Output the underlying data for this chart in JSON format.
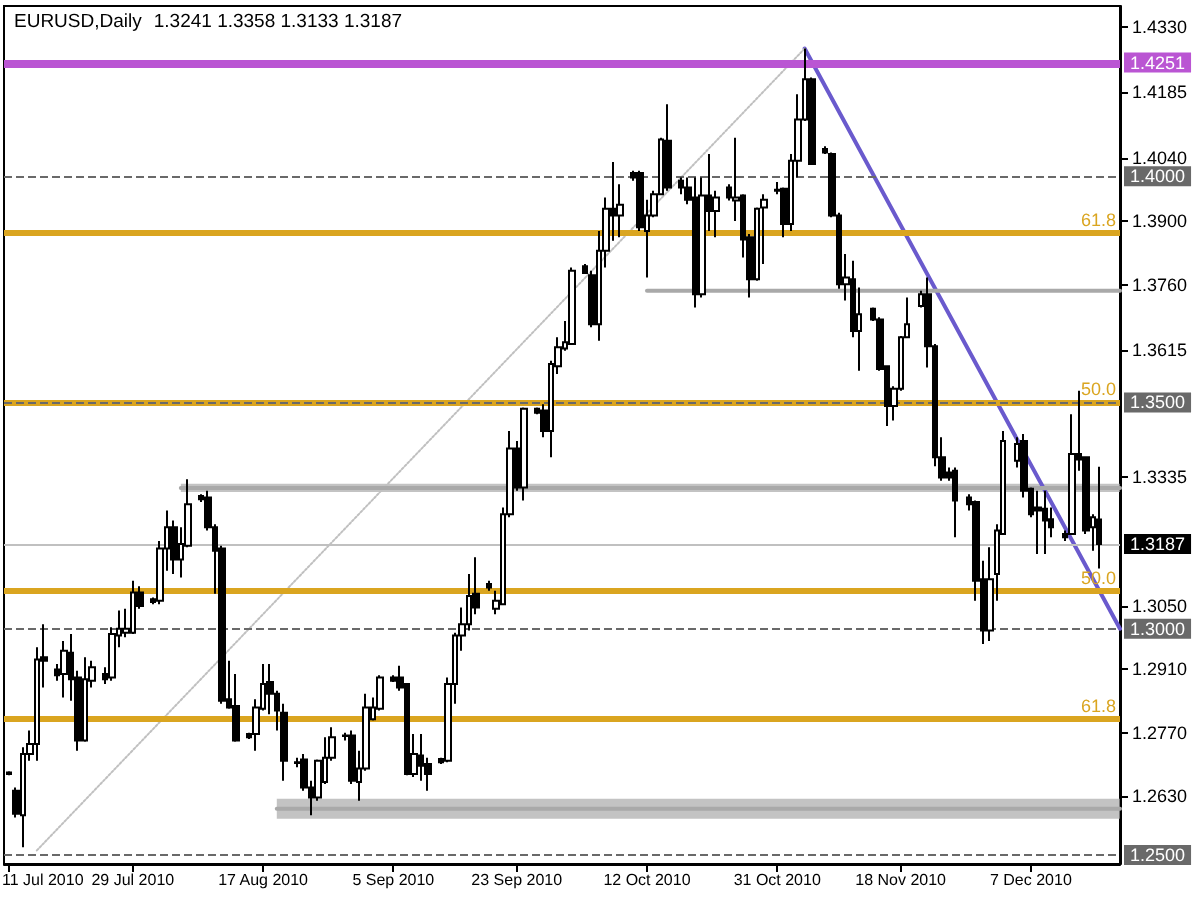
{
  "chart_data": {
    "type": "candlestick",
    "title": "EURUSD,Daily",
    "subtitle": "1.3241 1.3358 1.3133 1.3187",
    "color": "#000000",
    "x": [
      "2010-07-11",
      "2010-07-12",
      "2010-07-13",
      "2010-07-14",
      "2010-07-15",
      "2010-07-16",
      "2010-07-18",
      "2010-07-19",
      "2010-07-20",
      "2010-07-21",
      "2010-07-22",
      "2010-07-23",
      "2010-07-25",
      "2010-07-26",
      "2010-07-27",
      "2010-07-28",
      "2010-07-29",
      "2010-07-30",
      "2010-08-01",
      "2010-08-02",
      "2010-08-03",
      "2010-08-04",
      "2010-08-05",
      "2010-08-06",
      "2010-08-08",
      "2010-08-09",
      "2010-08-10",
      "2010-08-11",
      "2010-08-12",
      "2010-08-13",
      "2010-08-15",
      "2010-08-16",
      "2010-08-17",
      "2010-08-18",
      "2010-08-19",
      "2010-08-20",
      "2010-08-22",
      "2010-08-23",
      "2010-08-24",
      "2010-08-25",
      "2010-08-26",
      "2010-08-27",
      "2010-08-29",
      "2010-08-30",
      "2010-08-31",
      "2010-09-01",
      "2010-09-02",
      "2010-09-03",
      "2010-09-05",
      "2010-09-06",
      "2010-09-07",
      "2010-09-08",
      "2010-09-09",
      "2010-09-10",
      "2010-09-12",
      "2010-09-13",
      "2010-09-14",
      "2010-09-15",
      "2010-09-16",
      "2010-09-17",
      "2010-09-19",
      "2010-09-20",
      "2010-09-21",
      "2010-09-22",
      "2010-09-23",
      "2010-09-24",
      "2010-09-26",
      "2010-09-27",
      "2010-09-28",
      "2010-09-29",
      "2010-09-30",
      "2010-10-01",
      "2010-10-03",
      "2010-10-04",
      "2010-10-05",
      "2010-10-06",
      "2010-10-07",
      "2010-10-08",
      "2010-10-10",
      "2010-10-11",
      "2010-10-12",
      "2010-10-13",
      "2010-10-14",
      "2010-10-15",
      "2010-10-17",
      "2010-10-18",
      "2010-10-19",
      "2010-10-20",
      "2010-10-21",
      "2010-10-22",
      "2010-10-24",
      "2010-10-25",
      "2010-10-26",
      "2010-10-27",
      "2010-10-28",
      "2010-10-29",
      "2010-10-31",
      "2010-11-01",
      "2010-11-02",
      "2010-11-03",
      "2010-11-04",
      "2010-11-05",
      "2010-11-07",
      "2010-11-08",
      "2010-11-09",
      "2010-11-10",
      "2010-11-11",
      "2010-11-12",
      "2010-11-14",
      "2010-11-15",
      "2010-11-16",
      "2010-11-17",
      "2010-11-18",
      "2010-11-19",
      "2010-11-21",
      "2010-11-22",
      "2010-11-23",
      "2010-11-24",
      "2010-11-25",
      "2010-11-26",
      "2010-11-28",
      "2010-11-29",
      "2010-11-30",
      "2010-12-01",
      "2010-12-02",
      "2010-12-03",
      "2010-12-05",
      "2010-12-06",
      "2010-12-07",
      "2010-12-08",
      "2010-12-09",
      "2010-12-10",
      "2010-12-12",
      "2010-12-13",
      "2010-12-14",
      "2010-12-15",
      "2010-12-16",
      "2010-12-17"
    ],
    "ohlc": [
      [
        1.2682,
        1.2685,
        1.2676,
        1.2679
      ],
      [
        1.2642,
        1.2649,
        1.2583,
        1.2591
      ],
      [
        1.2588,
        1.2738,
        1.2517,
        1.2723
      ],
      [
        1.2723,
        1.2775,
        1.2708,
        1.2745
      ],
      [
        1.2745,
        1.2959,
        1.2708,
        1.2932
      ],
      [
        1.2937,
        1.301,
        1.287,
        1.2929
      ],
      [
        1.291,
        1.2922,
        1.2885,
        1.2897
      ],
      [
        1.29,
        1.2973,
        1.2848,
        1.2951
      ],
      [
        1.2947,
        1.2988,
        1.2841,
        1.2888
      ],
      [
        1.2892,
        1.2907,
        1.273,
        1.2753
      ],
      [
        1.2753,
        1.2937,
        1.275,
        1.2888
      ],
      [
        1.2885,
        1.2929,
        1.287,
        1.2915
      ],
      [
        1.29,
        1.2915,
        1.2878,
        1.2888
      ],
      [
        1.2892,
        1.3003,
        1.2885,
        1.2988
      ],
      [
        1.2985,
        1.304,
        1.2959,
        1.3
      ],
      [
        1.2991,
        1.3044,
        1.2981,
        1.3
      ],
      [
        1.2991,
        1.3106,
        1.2988,
        1.308
      ],
      [
        1.308,
        1.3094,
        1.3044,
        1.305
      ],
      [
        1.3065,
        1.3069,
        1.3054,
        1.3059
      ],
      [
        1.3062,
        1.3194,
        1.3054,
        1.3177
      ],
      [
        1.3177,
        1.3261,
        1.3128,
        1.3224
      ],
      [
        1.3224,
        1.3239,
        1.3121,
        1.3153
      ],
      [
        1.3153,
        1.3224,
        1.3113,
        1.3187
      ],
      [
        1.3183,
        1.333,
        1.318,
        1.3275
      ],
      [
        1.3293,
        1.3297,
        1.328,
        1.3286
      ],
      [
        1.329,
        1.3305,
        1.3217,
        1.3224
      ],
      [
        1.3224,
        1.3231,
        1.3077,
        1.3172
      ],
      [
        1.3177,
        1.3183,
        1.2834,
        1.2841
      ],
      [
        1.2844,
        1.2929,
        1.2823,
        1.2826
      ],
      [
        1.2829,
        1.29,
        1.275,
        1.2753
      ],
      [
        1.2767,
        1.277,
        1.2756,
        1.276
      ],
      [
        1.2767,
        1.2844,
        1.273,
        1.2826
      ],
      [
        1.2823,
        1.2922,
        1.2819,
        1.2878
      ],
      [
        1.2882,
        1.2922,
        1.2811,
        1.2856
      ],
      [
        1.2856,
        1.2863,
        1.2775,
        1.2819
      ],
      [
        1.2814,
        1.2834,
        1.2664,
        1.2708
      ],
      [
        1.2705,
        1.2715,
        1.2694,
        1.2703
      ],
      [
        1.2711,
        1.2723,
        1.2642,
        1.2649
      ],
      [
        1.2649,
        1.2664,
        1.2588,
        1.2627
      ],
      [
        1.2627,
        1.2711,
        1.262,
        1.2708
      ],
      [
        1.2661,
        1.276,
        1.2657,
        1.2715
      ],
      [
        1.2715,
        1.2782,
        1.2708,
        1.276
      ],
      [
        1.2764,
        1.277,
        1.2753,
        1.2763
      ],
      [
        1.2764,
        1.2775,
        1.2657,
        1.2664
      ],
      [
        1.2661,
        1.273,
        1.262,
        1.2691
      ],
      [
        1.2691,
        1.2856,
        1.2686,
        1.2826
      ],
      [
        1.28,
        1.2848,
        1.2797,
        1.2826
      ],
      [
        1.2823,
        1.2897,
        1.2819,
        1.2892
      ],
      [
        1.2892,
        1.2897,
        1.2882,
        1.2885
      ],
      [
        1.2892,
        1.2918,
        1.2863,
        1.287
      ],
      [
        1.2878,
        1.288,
        1.2676,
        1.2679
      ],
      [
        1.2679,
        1.2767,
        1.2672,
        1.2723
      ],
      [
        1.272,
        1.2767,
        1.2664,
        1.2697
      ],
      [
        1.2701,
        1.2715,
        1.2642,
        1.2679
      ],
      [
        1.2712,
        1.2715,
        1.2701,
        1.2705
      ],
      [
        1.2708,
        1.2892,
        1.2705,
        1.2878
      ],
      [
        1.2878,
        1.2991,
        1.2834,
        1.2985
      ],
      [
        1.2985,
        1.3047,
        1.2951,
        1.301
      ],
      [
        1.301,
        1.3121,
        1.2996,
        1.3072
      ],
      [
        1.3077,
        1.3158,
        1.3032,
        1.3047
      ],
      [
        1.3099,
        1.3106,
        1.3084,
        1.3091
      ],
      [
        1.3044,
        1.3084,
        1.3032,
        1.3062
      ],
      [
        1.3054,
        1.3268,
        1.3054,
        1.3253
      ],
      [
        1.3253,
        1.3437,
        1.3246,
        1.3398
      ],
      [
        1.3398,
        1.3415,
        1.3305,
        1.3312
      ],
      [
        1.3312,
        1.3489,
        1.3283,
        1.3486
      ],
      [
        1.3486,
        1.3489,
        1.3474,
        1.3477
      ],
      [
        1.3482,
        1.3496,
        1.3423,
        1.3437
      ],
      [
        1.3437,
        1.3592,
        1.3379,
        1.3585
      ],
      [
        1.358,
        1.3644,
        1.3563,
        1.3622
      ],
      [
        1.3619,
        1.368,
        1.3614,
        1.3633
      ],
      [
        1.3629,
        1.3798,
        1.3629,
        1.3791
      ],
      [
        1.3801,
        1.3806,
        1.3784,
        1.3786
      ],
      [
        1.3781,
        1.3791,
        1.3666,
        1.3673
      ],
      [
        1.3673,
        1.3879,
        1.3636,
        1.3835
      ],
      [
        1.3835,
        1.3953,
        1.3798,
        1.3928
      ],
      [
        1.3928,
        1.4031,
        1.3857,
        1.3913
      ],
      [
        1.3913,
        1.3982,
        1.3865,
        1.3937
      ],
      [
        1.4007,
        1.4012,
        1.399,
        1.3997
      ],
      [
        1.4007,
        1.4012,
        1.3879,
        1.3887
      ],
      [
        1.3879,
        1.3948,
        1.3776,
        1.3913
      ],
      [
        1.3913,
        1.3968,
        1.3909,
        1.396
      ],
      [
        1.396,
        1.4085,
        1.396,
        1.4081
      ],
      [
        1.4078,
        1.4159,
        1.3968,
        1.3975
      ],
      [
        1.399,
        1.3997,
        1.396,
        1.3975
      ],
      [
        1.3975,
        1.3997,
        1.3938,
        1.3948
      ],
      [
        1.3953,
        1.3997,
        1.371,
        1.3739
      ],
      [
        1.3739,
        1.3997,
        1.3732,
        1.3957
      ],
      [
        1.3957,
        1.4049,
        1.3879,
        1.3923
      ],
      [
        1.3923,
        1.3968,
        1.3865,
        1.3953
      ],
      [
        1.3975,
        1.3982,
        1.3946,
        1.3953
      ],
      [
        1.3946,
        1.4085,
        1.3901,
        1.3953
      ],
      [
        1.3957,
        1.396,
        1.382,
        1.386
      ],
      [
        1.3865,
        1.3872,
        1.3732,
        1.3772
      ],
      [
        1.3772,
        1.3931,
        1.3769,
        1.3928
      ],
      [
        1.3931,
        1.396,
        1.3806,
        1.3948
      ],
      [
        1.3968,
        1.3987,
        1.396,
        1.397
      ],
      [
        1.3972,
        1.3975,
        1.3865,
        1.3894
      ],
      [
        1.3894,
        1.4049,
        1.3879,
        1.4034
      ],
      [
        1.4034,
        1.4181,
        1.3997,
        1.4125
      ],
      [
        1.4125,
        1.4282,
        1.4122,
        1.4214
      ],
      [
        1.4214,
        1.4218,
        1.4027,
        1.4027
      ],
      [
        1.406,
        1.4066,
        1.4049,
        1.4052
      ],
      [
        1.4049,
        1.4052,
        1.3909,
        1.3913
      ],
      [
        1.3913,
        1.3919,
        1.3751,
        1.3761
      ],
      [
        1.3761,
        1.3828,
        1.3725,
        1.3776
      ],
      [
        1.3772,
        1.3813,
        1.3644,
        1.3658
      ],
      [
        1.3658,
        1.3754,
        1.357,
        1.3695
      ],
      [
        1.3707,
        1.371,
        1.368,
        1.3683
      ],
      [
        1.3683,
        1.3688,
        1.357,
        1.3574
      ],
      [
        1.358,
        1.3582,
        1.3448,
        1.3492
      ],
      [
        1.3492,
        1.3536,
        1.346,
        1.353
      ],
      [
        1.353,
        1.3647,
        1.3526,
        1.3644
      ],
      [
        1.3644,
        1.3732,
        1.3642,
        1.3673
      ],
      [
        1.3713,
        1.3747,
        1.371,
        1.3739
      ],
      [
        1.3739,
        1.3776,
        1.3577,
        1.3624
      ],
      [
        1.3624,
        1.3629,
        1.3359,
        1.3379
      ],
      [
        1.3379,
        1.3423,
        1.3327,
        1.3334
      ],
      [
        1.3345,
        1.3356,
        1.3327,
        1.3334
      ],
      [
        1.3349,
        1.3356,
        1.3202,
        1.3283
      ],
      [
        1.329,
        1.3297,
        1.3261,
        1.3275
      ],
      [
        1.328,
        1.3283,
        1.3062,
        1.3106
      ],
      [
        1.3109,
        1.315,
        1.2966,
        1.2996
      ],
      [
        1.2996,
        1.318,
        1.2973,
        1.3109
      ],
      [
        1.3121,
        1.3231,
        1.3062,
        1.3217
      ],
      [
        1.3209,
        1.3437,
        1.3209,
        1.3415
      ],
      [
        1.3371,
        1.3423,
        1.3356,
        1.3408
      ],
      [
        1.3415,
        1.343,
        1.329,
        1.3305
      ],
      [
        1.3309,
        1.3312,
        1.3246,
        1.3253
      ],
      [
        1.3268,
        1.3305,
        1.3165,
        1.3261
      ],
      [
        1.3265,
        1.3305,
        1.3165,
        1.3239
      ],
      [
        1.3242,
        1.3268,
        1.3202,
        1.3224
      ],
      [
        1.3209,
        1.3217,
        1.3194,
        1.3202
      ],
      [
        1.3209,
        1.3474,
        1.3209,
        1.3386
      ],
      [
        1.3386,
        1.3526,
        1.3349,
        1.3374
      ],
      [
        1.3379,
        1.3381,
        1.3209,
        1.3217
      ],
      [
        1.3224,
        1.3253,
        1.3172,
        1.3246
      ],
      [
        1.3241,
        1.3358,
        1.3133,
        1.3187
      ]
    ],
    "series": [
      {
        "type": "line",
        "color": "#6a5acd",
        "x": [
          "2010-11-04",
          "2010-12-20"
        ],
        "values": [
          1.4282,
          1.3
        ]
      },
      {
        "type": "line",
        "color": "#c0c0c0",
        "line_style": "dotted",
        "x": [
          "2010-07-15",
          "2010-11-04"
        ],
        "values": [
          1.251,
          1.4282
        ]
      },
      {
        "type": "line",
        "color": "#a9a9a9",
        "x": [
          "2010-08-05",
          "2010-12-20"
        ],
        "values": [
          1.3311,
          1.3311
        ],
        "lower": [
          1.3302,
          1.3302
        ],
        "upper": [
          1.332,
          1.332
        ]
      },
      {
        "type": "line",
        "color": "#a9a9a9",
        "x": [
          "2010-08-19",
          "2010-12-20"
        ],
        "values": [
          1.2602,
          1.2602
        ],
        "lower": [
          1.258,
          1.258
        ],
        "upper": [
          1.2624,
          1.2624
        ]
      },
      {
        "type": "line",
        "color": "#a9a9a9",
        "x": [
          "2010-10-12",
          "2010-12-20"
        ],
        "values": [
          1.3747,
          1.3747
        ]
      }
    ],
    "xlim": [
      "2010-07-10T05:00",
      "2010-12-20"
    ],
    "xticks": [
      {
        "value": "2010-07-11",
        "label": "11 Jul 2010"
      },
      {
        "value": "2010-07-29",
        "label": "29 Jul 2010"
      },
      {
        "value": "2010-08-17",
        "label": "17 Aug 2010"
      },
      {
        "value": "2010-09-05",
        "label": "5 Sep 2010"
      },
      {
        "value": "2010-09-23",
        "label": "23 Sep 2010"
      },
      {
        "value": "2010-10-12",
        "label": "12 Oct 2010"
      },
      {
        "value": "2010-10-31",
        "label": "31 Oct 2010"
      },
      {
        "value": "2010-11-18",
        "label": "18 Nov 2010"
      },
      {
        "value": "2010-12-07",
        "label": "7 Dec 2010"
      }
    ],
    "ylim": [
      1.248,
      1.4376
    ],
    "yticks": [
      {
        "value": 1.433,
        "label": "1.4330"
      },
      {
        "value": 1.4185,
        "label": "1.4185"
      },
      {
        "value": 1.404,
        "label": "1.4040"
      },
      {
        "value": 1.39,
        "label": "1.3900"
      },
      {
        "value": 1.376,
        "label": "1.3760"
      },
      {
        "value": 1.3615,
        "label": "1.3615"
      },
      {
        "value": 1.3335,
        "label": "1.3335"
      },
      {
        "value": 1.305,
        "label": "1.3050"
      },
      {
        "value": 1.291,
        "label": "1.2910"
      },
      {
        "value": 1.277,
        "label": "1.2770"
      },
      {
        "value": 1.263,
        "label": "1.2630"
      }
    ],
    "ref_lines": [
      {
        "axis": "y",
        "value": 1.4251,
        "label": "1.4251",
        "color": "#ba55d3"
      },
      {
        "axis": "y",
        "value": 1.4,
        "label": "1.4000",
        "color": "#696969",
        "line_style": "dashed"
      },
      {
        "axis": "y",
        "value": 1.3874,
        "color": "#daa520"
      },
      {
        "axis": "y",
        "value": 1.35,
        "color": "#daa520"
      },
      {
        "axis": "y",
        "value": 1.35,
        "label": "1.3500",
        "color": "#696969",
        "line_style": "dashed"
      },
      {
        "axis": "y",
        "value": 1.3187,
        "label": "1.3187",
        "color": "#c0c0c0"
      },
      {
        "axis": "y",
        "value": 1.3083,
        "color": "#daa520"
      },
      {
        "axis": "y",
        "value": 1.3,
        "label": "1.3000",
        "color": "#696969",
        "line_style": "dashed"
      },
      {
        "axis": "y",
        "value": 1.28,
        "color": "#daa520"
      },
      {
        "axis": "y",
        "value": 1.25,
        "label": "1.2500",
        "color": "#696969",
        "line_style": "dashed"
      }
    ],
    "annotations": [
      {
        "text": "61.8",
        "x": "2010-12-20",
        "y": 1.3874
      },
      {
        "text": "50.0",
        "x": "2010-12-20",
        "y": 1.35
      },
      {
        "text": "50.0",
        "x": "2010-12-20",
        "y": 1.3083
      },
      {
        "text": "61.8",
        "x": "2010-12-20",
        "y": 1.28
      }
    ]
  }
}
